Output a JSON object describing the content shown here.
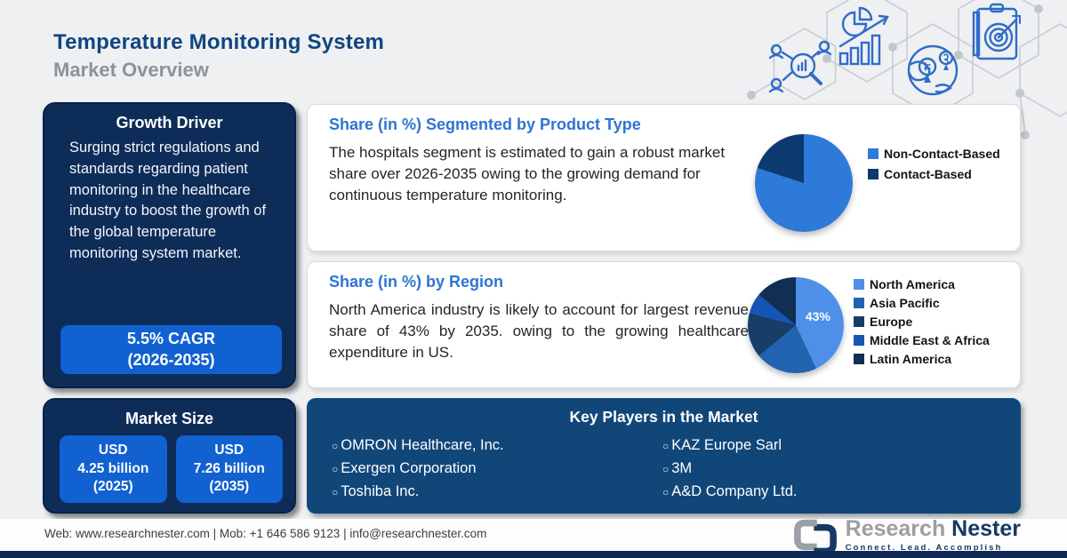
{
  "header": {
    "title": "Temperature Monitoring System",
    "subtitle": "Market Overview"
  },
  "growth_driver": {
    "title": "Growth Driver",
    "body": "Surging strict regulations and standards regarding patient monitoring in the healthcare industry to boost the growth of the global temperature monitoring system market.",
    "cagr_line1": "5.5% CAGR",
    "cagr_line2": "(2026-2035)"
  },
  "market_size": {
    "title": "Market Size",
    "buttons": [
      {
        "line1": "USD",
        "line2": "4.25 billion",
        "line3": "(2025)"
      },
      {
        "line1": "USD",
        "line2": "7.26 billion",
        "line3": "(2035)"
      }
    ]
  },
  "cards": {
    "product_type": {
      "title": "Share (in %) Segmented by Product Type",
      "body": "The hospitals segment is estimated to gain a robust market share over 2026-2035 owing to the growing demand for continuous temperature monitoring."
    },
    "region": {
      "title": "Share (in %) by Region",
      "body": "North America industry is likely to account for largest revenue share of 43% by 2035. owing to the growing healthcare expenditure in US."
    }
  },
  "chart_data": [
    {
      "type": "pie",
      "title": "Share (in %) Segmented by Product Type",
      "labels": [
        "Non-Contact-Based",
        "Contact-Based"
      ],
      "values": [
        80,
        20
      ],
      "colors": [
        "#2e7ad8",
        "#0d3a6e"
      ],
      "legend_position": "right",
      "data_label": ""
    },
    {
      "type": "pie",
      "title": "Share (in %) by Region",
      "labels": [
        "North America",
        "Asia Pacific",
        "Europe",
        "Middle East & Africa",
        "Latin America"
      ],
      "values": [
        43,
        21,
        15,
        7,
        14
      ],
      "colors": [
        "#4e90e8",
        "#2163ae",
        "#163e66",
        "#1556b4",
        "#102f52"
      ],
      "legend_position": "right",
      "data_label": "43%"
    }
  ],
  "key_players": {
    "title": "Key Players in the Market",
    "bullet": "○",
    "col1": [
      "OMRON Healthcare, Inc.",
      "Exergen Corporation",
      "Toshiba Inc."
    ],
    "col2": [
      "KAZ Europe Sarl",
      "3M",
      "A&D Company Ltd."
    ]
  },
  "footer": {
    "contact": "Web: www.researchnester.com  |  Mob: +1 646 586 9123  |  info@researchnester.com",
    "logo": {
      "part1": "Research",
      "part2": "Nester",
      "tagline": "Connect. Lead. Accomplish"
    }
  },
  "icons": {
    "deco": [
      "market-research-magnifier-icon",
      "analytics-growth-chart-icon",
      "global-market-globe-icon",
      "target-clipboard-icon"
    ]
  },
  "colors": {
    "background": "#eef0f2",
    "title_blue": "#11457f",
    "subtitle_gray": "#8f9296",
    "navy_box": "#0e2c58",
    "button_blue": "#1161d1",
    "players_navy": "#114679",
    "card_heading_blue": "#2e74d4",
    "bottom_bar": "#0e2a55"
  }
}
